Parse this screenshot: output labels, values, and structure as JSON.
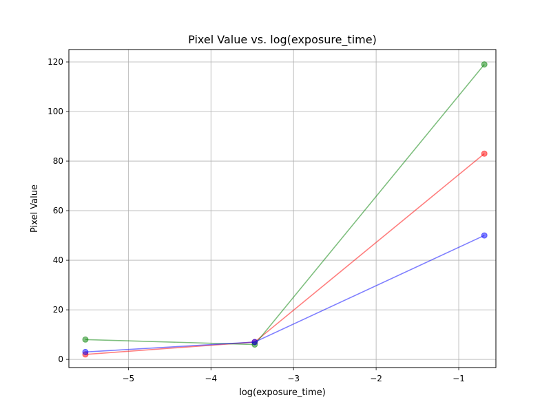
{
  "chart_data": {
    "type": "line",
    "title": "Pixel Value vs. log(exposure_time)",
    "xlabel": "log(exposure_time)",
    "ylabel": "Pixel Value",
    "xlim": [
      -5.72,
      -0.55
    ],
    "ylim": [
      -3.3,
      125
    ],
    "xticks": [
      -5,
      -4,
      -3,
      -2,
      -1
    ],
    "xtick_labels": [
      "−5",
      "−4",
      "−3",
      "−2",
      "−1"
    ],
    "yticks": [
      0,
      20,
      40,
      60,
      80,
      100,
      120
    ],
    "ytick_labels": [
      "0",
      "20",
      "40",
      "60",
      "80",
      "100",
      "120"
    ],
    "grid": true,
    "x": [
      -5.52,
      -3.47,
      -0.69
    ],
    "series": [
      {
        "color": "#ff0000",
        "values": [
          2,
          7,
          83
        ]
      },
      {
        "color": "#008000",
        "values": [
          8,
          6,
          119
        ]
      },
      {
        "color": "#0000ff",
        "values": [
          3,
          7,
          50
        ]
      }
    ]
  }
}
